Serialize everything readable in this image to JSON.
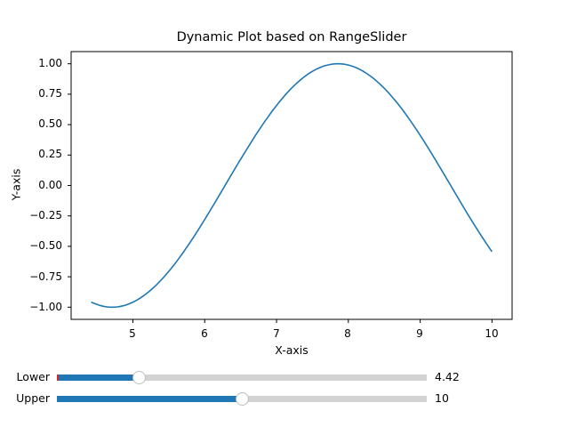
{
  "figure": {
    "title": "Dynamic Plot based on RangeSlider",
    "xlabel": "X-axis",
    "ylabel": "Y-axis",
    "line_color": "#1f77b4"
  },
  "axes": {
    "yticks": [
      "1.00",
      "0.75",
      "0.50",
      "0.25",
      "0.00",
      "−0.25",
      "−0.50",
      "−0.75",
      "−1.00"
    ],
    "xticks": [
      "5",
      "6",
      "7",
      "8",
      "9",
      "10"
    ]
  },
  "sliders": {
    "lower": {
      "label": "Lower",
      "value": "4.42",
      "fill_color": "#1f77b4",
      "track_color": "#d3d3d3",
      "initial_marker_color": "#d62728"
    },
    "upper": {
      "label": "Upper",
      "value": "10",
      "fill_color": "#1f77b4",
      "track_color": "#d3d3d3"
    }
  },
  "chart_data": {
    "type": "line",
    "title": "Dynamic Plot based on RangeSlider",
    "xlabel": "X-axis",
    "ylabel": "Y-axis",
    "function": "y = sin(x)",
    "x_range": [
      4.42,
      10
    ],
    "xlim": [
      4.14,
      10.28
    ],
    "ylim": [
      -1.1,
      1.1
    ],
    "xticks": [
      5,
      6,
      7,
      8,
      9,
      10
    ],
    "yticks": [
      -1.0,
      -0.75,
      -0.5,
      -0.25,
      0.0,
      0.25,
      0.5,
      0.75,
      1.0
    ],
    "series": [
      {
        "name": "sin(x)",
        "color": "#1f77b4",
        "x": [
          4.42,
          4.71,
          5.0,
          5.5,
          6.0,
          6.5,
          7.0,
          7.5,
          7.85,
          8.0,
          8.5,
          9.0,
          9.5,
          10.0
        ],
        "y": [
          -0.96,
          -1.0,
          -0.96,
          -0.71,
          -0.28,
          0.22,
          0.66,
          0.94,
          1.0,
          0.99,
          0.8,
          0.41,
          -0.08,
          -0.54
        ]
      }
    ],
    "grid": false,
    "legend": null
  }
}
